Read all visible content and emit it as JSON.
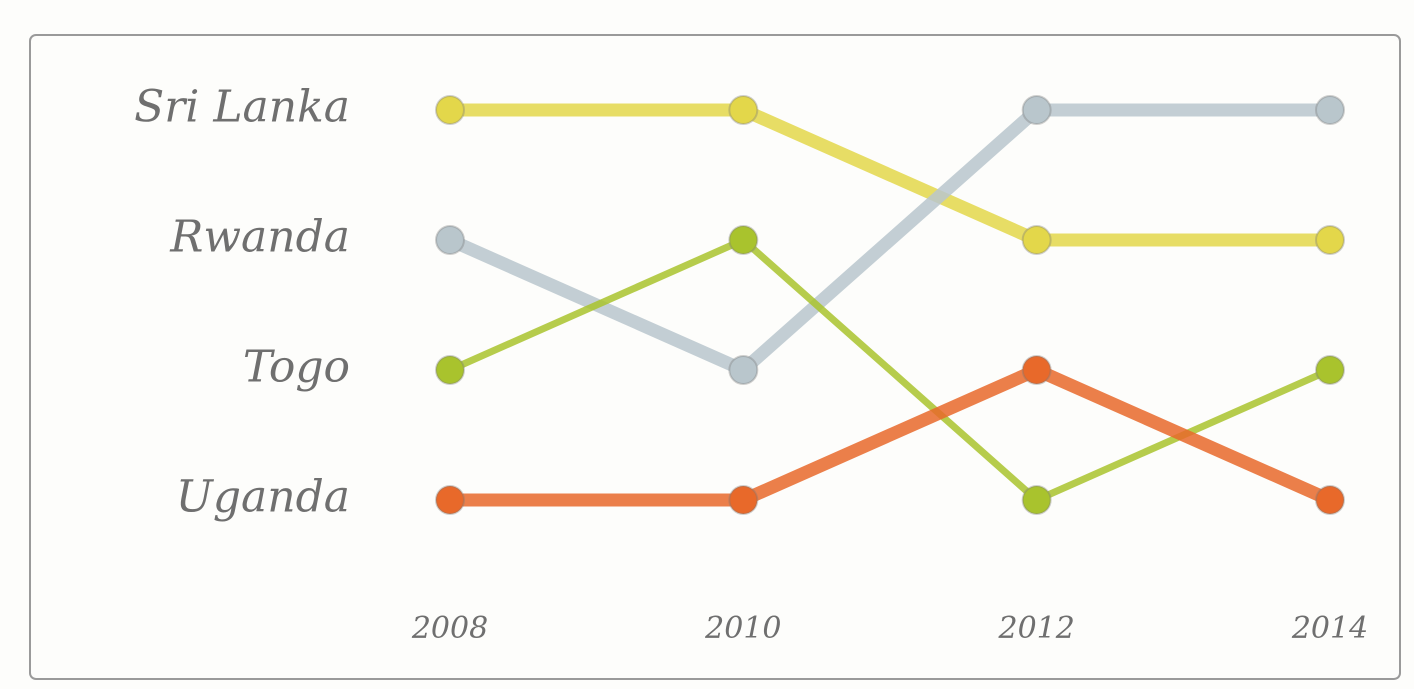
{
  "chart_data": {
    "type": "bump",
    "x": [
      2008,
      2010,
      2012,
      2014
    ],
    "xticks": [
      2008,
      2010,
      2012,
      2014
    ],
    "ylim": [
      5,
      0.5
    ],
    "series": [
      {
        "name": "Sri Lanka",
        "color": "#e3d74a",
        "values": [
          1,
          1,
          2,
          2
        ]
      },
      {
        "name": "Rwanda",
        "color": "#b9c6cc",
        "values": [
          2,
          3,
          1,
          1
        ]
      },
      {
        "name": "Togo",
        "color": "#a9c32d",
        "values": [
          3,
          2,
          4,
          3
        ]
      },
      {
        "name": "Uganda",
        "color": "#e8692a",
        "values": [
          4,
          4,
          3,
          4
        ]
      }
    ]
  }
}
